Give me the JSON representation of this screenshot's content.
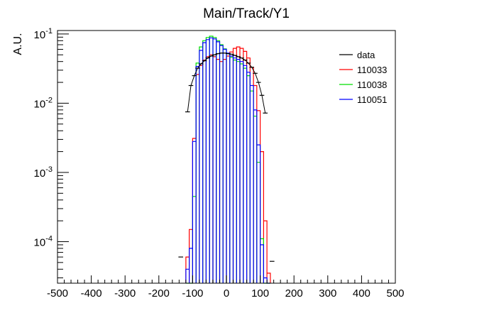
{
  "chart_data": {
    "type": "line",
    "title": "Main/Track/Y1",
    "ylabel": "A.U.",
    "xlabel": "",
    "xlim": [
      -500,
      500
    ],
    "ylim_log10": [
      -4.6,
      -0.95
    ],
    "yscale": "log",
    "grid": false,
    "legend_position": "top-right",
    "bin_edges": [
      -120,
      -110,
      -100,
      -90,
      -80,
      -70,
      -60,
      -50,
      -40,
      -30,
      -20,
      -10,
      0,
      10,
      20,
      30,
      40,
      50,
      60,
      70,
      80,
      90,
      100,
      110,
      120,
      130
    ],
    "x_ticks": [
      "-500",
      "-400",
      "-300",
      "-200",
      "-100",
      "0",
      "100",
      "200",
      "300",
      "400",
      "500"
    ],
    "y_ticks": [
      {
        "base": "10",
        "exp": "-1",
        "log": -1
      },
      {
        "base": "10",
        "exp": "-2",
        "log": -2
      },
      {
        "base": "10",
        "exp": "-3",
        "log": -3
      },
      {
        "base": "10",
        "exp": "-4",
        "log": -4
      }
    ],
    "series": [
      {
        "name": "data",
        "color": "#000000",
        "style": "markers",
        "points": [
          {
            "x": -135,
            "y": 6e-05
          },
          {
            "x": -115,
            "y": 0.0075
          },
          {
            "x": -105,
            "y": 0.018
          },
          {
            "x": -95,
            "y": 0.025
          },
          {
            "x": -85,
            "y": 0.032
          },
          {
            "x": -75,
            "y": 0.037
          },
          {
            "x": -65,
            "y": 0.041
          },
          {
            "x": -55,
            "y": 0.045
          },
          {
            "x": -45,
            "y": 0.048
          },
          {
            "x": -35,
            "y": 0.05
          },
          {
            "x": -25,
            "y": 0.052
          },
          {
            "x": -15,
            "y": 0.053
          },
          {
            "x": -5,
            "y": 0.053
          },
          {
            "x": 5,
            "y": 0.052
          },
          {
            "x": 15,
            "y": 0.051
          },
          {
            "x": 25,
            "y": 0.049
          },
          {
            "x": 35,
            "y": 0.047
          },
          {
            "x": 45,
            "y": 0.045
          },
          {
            "x": 55,
            "y": 0.042
          },
          {
            "x": 65,
            "y": 0.038
          },
          {
            "x": 75,
            "y": 0.033
          },
          {
            "x": 85,
            "y": 0.027
          },
          {
            "x": 95,
            "y": 0.02
          },
          {
            "x": 105,
            "y": 0.013
          },
          {
            "x": 115,
            "y": 0.0072
          },
          {
            "x": 135,
            "y": 5.2e-05
          }
        ]
      },
      {
        "name": "110033",
        "color": "#ff0000",
        "style": "hist",
        "values": [
          6e-05,
          0.00015,
          0.0031,
          0.026,
          0.035,
          0.042,
          0.047,
          0.05,
          0.047,
          0.043,
          0.04,
          0.043,
          0.048,
          0.055,
          0.062,
          0.065,
          0.062,
          0.056,
          0.045,
          0.033,
          0.018,
          0.0078,
          0.002,
          0.0002,
          3.5e-05
        ]
      },
      {
        "name": "110038",
        "color": "#00dd00",
        "style": "hist",
        "values": [
          2e-05,
          2e-05,
          0.00045,
          0.038,
          0.065,
          0.08,
          0.089,
          0.093,
          0.089,
          0.08,
          0.07,
          0.061,
          0.052,
          0.046,
          0.042,
          0.04,
          0.037,
          0.032,
          0.025,
          0.015,
          0.0065,
          0.0014,
          0.00011,
          2e-05,
          2e-05
        ]
      },
      {
        "name": "110051",
        "color": "#0000ff",
        "style": "hist",
        "values": [
          4e-05,
          8e-05,
          0.0028,
          0.034,
          0.058,
          0.075,
          0.083,
          0.088,
          0.085,
          0.077,
          0.068,
          0.06,
          0.053,
          0.048,
          0.045,
          0.043,
          0.04,
          0.035,
          0.028,
          0.018,
          0.008,
          0.0025,
          9e-05,
          3e-05,
          2e-05
        ]
      }
    ]
  }
}
